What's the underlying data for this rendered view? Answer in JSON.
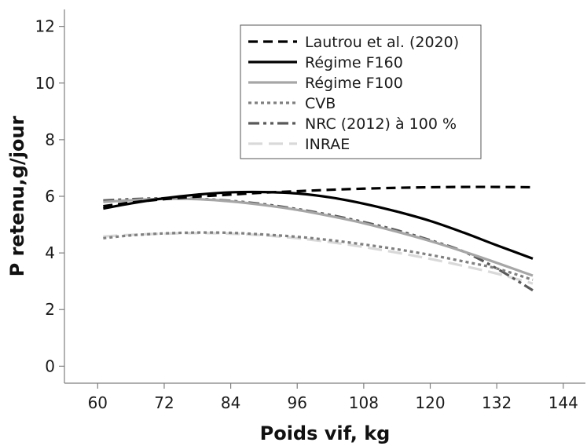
{
  "chart_data": {
    "type": "line",
    "xlabel": "Poids vif, kg",
    "ylabel": "P retenu,g/jour",
    "xlim": [
      54,
      148
    ],
    "ylim": [
      -0.6,
      12.6
    ],
    "xticks": [
      60,
      72,
      84,
      96,
      108,
      120,
      132,
      144
    ],
    "yticks": [
      0,
      2,
      4,
      6,
      8,
      10,
      12
    ],
    "grid": false,
    "legend_position": "top-right",
    "series": [
      {
        "name": "Lautrou et al. (2020)",
        "color": "#000000",
        "style": "dashed",
        "x": [
          61,
          66,
          72,
          78,
          84,
          90,
          96,
          102,
          108,
          114,
          120,
          126,
          132,
          138.5
        ],
        "y": [
          5.65,
          5.78,
          5.9,
          5.99,
          6.06,
          6.13,
          6.18,
          6.23,
          6.27,
          6.3,
          6.32,
          6.33,
          6.33,
          6.32
        ]
      },
      {
        "name": "Régime F160",
        "color": "#000000",
        "style": "solid",
        "x": [
          61,
          66,
          72,
          78,
          84,
          90,
          96,
          102,
          108,
          114,
          120,
          126,
          132,
          138.5
        ],
        "y": [
          5.57,
          5.75,
          5.93,
          6.06,
          6.14,
          6.15,
          6.1,
          5.96,
          5.74,
          5.46,
          5.13,
          4.72,
          4.27,
          3.8
        ]
      },
      {
        "name": "Régime F100",
        "color": "#a6a6a6",
        "style": "solid",
        "x": [
          61,
          66,
          72,
          78,
          84,
          90,
          96,
          102,
          108,
          114,
          120,
          126,
          132,
          138.5
        ],
        "y": [
          5.8,
          5.86,
          5.91,
          5.9,
          5.82,
          5.69,
          5.52,
          5.3,
          5.05,
          4.75,
          4.42,
          4.05,
          3.65,
          3.2
        ]
      },
      {
        "name": "CVB",
        "color": "#808080",
        "style": "dotted",
        "x": [
          61,
          66,
          72,
          78,
          84,
          90,
          96,
          102,
          108,
          114,
          120,
          126,
          132,
          138.5
        ],
        "y": [
          4.52,
          4.62,
          4.69,
          4.72,
          4.71,
          4.65,
          4.57,
          4.45,
          4.3,
          4.13,
          3.93,
          3.7,
          3.45,
          3.05
        ]
      },
      {
        "name": "NRC (2012) à 100 %",
        "color": "#595959",
        "style": "dashdotdot",
        "x": [
          61,
          66,
          72,
          78,
          84,
          90,
          96,
          102,
          108,
          114,
          120,
          126,
          132,
          138.5
        ],
        "y": [
          5.85,
          5.9,
          5.93,
          5.91,
          5.84,
          5.72,
          5.55,
          5.34,
          5.09,
          4.8,
          4.45,
          4.05,
          3.45,
          2.68
        ]
      },
      {
        "name": "INRAE",
        "color": "#d9d9d9",
        "style": "longdash",
        "x": [
          61,
          66,
          72,
          78,
          84,
          90,
          96,
          102,
          108,
          114,
          120,
          126,
          132,
          138.5
        ],
        "y": [
          4.58,
          4.64,
          4.68,
          4.7,
          4.68,
          4.62,
          4.52,
          4.38,
          4.21,
          4.01,
          3.79,
          3.54,
          3.27,
          2.92
        ]
      }
    ]
  }
}
